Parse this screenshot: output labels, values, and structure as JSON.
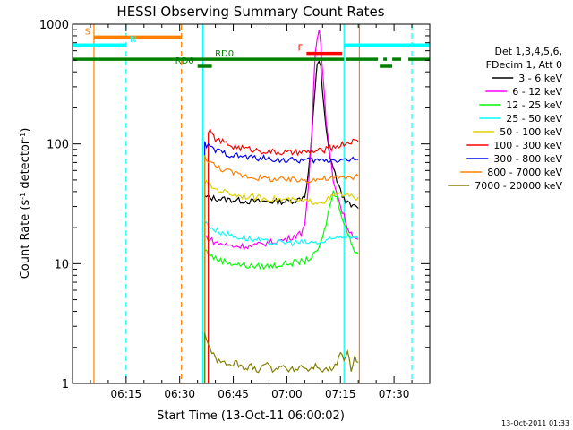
{
  "chart_data": {
    "type": "line",
    "title": "HESSI Observing Summary Count Rates",
    "xlabel": "Start Time (13-Oct-11 06:00:02)",
    "ylabel_main": "Count Rate (s",
    "ylabel_sup1": "-1",
    "ylabel_mid": " detector",
    "ylabel_sup2": "-1",
    "ylabel_end": ")",
    "xlim_minutes": [
      0,
      100
    ],
    "ylim": [
      1,
      1000
    ],
    "yscale": "log",
    "x_ticks": [
      {
        "minute": 15,
        "label": "06:15"
      },
      {
        "minute": 30,
        "label": "06:30"
      },
      {
        "minute": 45,
        "label": "06:45"
      },
      {
        "minute": 60,
        "label": "07:00"
      },
      {
        "minute": 75,
        "label": "07:15"
      },
      {
        "minute": 90,
        "label": "07:30"
      }
    ],
    "y_ticks": [
      {
        "value": 1,
        "label": "1"
      },
      {
        "value": 10,
        "label": "10"
      },
      {
        "value": 100,
        "label": "100"
      },
      {
        "value": 1000,
        "label": "1000"
      }
    ],
    "timestamp": "13-Oct-2011 01:33",
    "legend_header": [
      "Det 1,3,4,5,6,",
      "FDecim 1, Att 0"
    ],
    "series": [
      {
        "name": "3 - 6 keV",
        "color": "#000000",
        "x": [
          37,
          40,
          45,
          50,
          55,
          60,
          63,
          65,
          66,
          67,
          68,
          68.5,
          69,
          69.5,
          70,
          71,
          72,
          74,
          75,
          76,
          77,
          78,
          79,
          80
        ],
        "y": [
          36,
          35,
          34,
          33,
          33,
          33,
          34,
          37,
          55,
          120,
          300,
          470,
          500,
          430,
          260,
          130,
          80,
          50,
          40,
          35,
          32,
          30,
          30,
          29
        ]
      },
      {
        "name": "6 - 12 keV",
        "color": "#ff00ff",
        "x": [
          37,
          40,
          45,
          50,
          55,
          60,
          62,
          64,
          65,
          66,
          67,
          67.5,
          68,
          68.5,
          69,
          69.5,
          70,
          71,
          72,
          73,
          74,
          75,
          76,
          77,
          78,
          79,
          80
        ],
        "y": [
          17,
          15,
          14,
          14,
          15,
          16,
          17,
          18,
          22,
          40,
          120,
          300,
          600,
          800,
          900,
          700,
          400,
          160,
          80,
          50,
          40,
          30,
          25,
          20,
          18,
          17,
          16
        ]
      },
      {
        "name": "12 - 25 keV",
        "color": "#00ff00",
        "x": [
          37,
          40,
          45,
          50,
          55,
          60,
          65,
          68,
          70,
          72,
          73,
          74,
          75,
          76,
          77,
          78,
          79,
          80
        ],
        "y": [
          13,
          11,
          10,
          9.5,
          9.5,
          10,
          10.5,
          12,
          16,
          30,
          40,
          35,
          28,
          22,
          18,
          15,
          13,
          12
        ]
      },
      {
        "name": "25 - 50 keV",
        "color": "#00ffff",
        "x": [
          37,
          40,
          45,
          50,
          55,
          60,
          65,
          70,
          73,
          75,
          77,
          78,
          79,
          80
        ],
        "y": [
          22,
          19,
          17,
          16,
          15,
          15,
          15,
          15,
          16,
          17,
          17,
          17,
          17,
          16
        ]
      },
      {
        "name": "50 - 100 keV",
        "color": "#e0d000",
        "x": [
          37,
          40,
          45,
          50,
          55,
          60,
          65,
          70,
          72,
          74,
          75,
          76,
          77,
          78,
          79,
          80
        ],
        "y": [
          48,
          42,
          38,
          36,
          35,
          34,
          33,
          33,
          35,
          38,
          38,
          37,
          37,
          36,
          36,
          36
        ]
      },
      {
        "name": "100 - 300 keV",
        "color": "#ff0000",
        "x": [
          38,
          40,
          45,
          50,
          55,
          60,
          65,
          70,
          75,
          78,
          80
        ],
        "y": [
          130,
          110,
          95,
          90,
          86,
          84,
          85,
          88,
          98,
          105,
          105
        ]
      },
      {
        "name": "300 - 800 keV",
        "color": "#0000ff",
        "x": [
          37,
          40,
          45,
          50,
          55,
          60,
          65,
          70,
          75,
          78,
          80
        ],
        "y": [
          100,
          88,
          80,
          77,
          75,
          73,
          73,
          73,
          74,
          74,
          74
        ]
      },
      {
        "name": "800 - 7000 keV",
        "color": "#ff8000",
        "x": [
          37,
          40,
          45,
          50,
          55,
          60,
          65,
          70,
          75,
          78,
          80
        ],
        "y": [
          78,
          65,
          57,
          53,
          51,
          50,
          50,
          51,
          52,
          53,
          54
        ]
      },
      {
        "name": "7000 - 20000 keV",
        "color": "#808000",
        "x": [
          37,
          38,
          39,
          40,
          42,
          44,
          46,
          48,
          50,
          52,
          54,
          56,
          58,
          60,
          62,
          64,
          66,
          68,
          70,
          72,
          74,
          75,
          76,
          77,
          78,
          79,
          80
        ],
        "y": [
          2.6,
          2.2,
          1.8,
          1.6,
          1.5,
          1.4,
          1.5,
          1.3,
          1.4,
          1.3,
          1.5,
          1.3,
          1.4,
          1.3,
          1.3,
          1.4,
          1.3,
          1.4,
          1.3,
          1.3,
          1.4,
          1.9,
          1.5,
          1.8,
          1.3,
          1.7,
          1.5
        ]
      }
    ],
    "vertical_lines": [
      {
        "minute": 6,
        "color": "#ff8000",
        "style": "solid"
      },
      {
        "minute": 15,
        "color": "#00ffff",
        "style": "dashed"
      },
      {
        "minute": 30.5,
        "color": "#ff8000",
        "style": "dashed"
      },
      {
        "minute": 36.5,
        "color": "#00ffff",
        "style": "solid"
      },
      {
        "minute": 76,
        "color": "#00ffff",
        "style": "solid"
      },
      {
        "minute": 80.3,
        "color": "#ff8000",
        "style": "solid"
      },
      {
        "minute": 95,
        "color": "#00ffff",
        "style": "dashed"
      }
    ],
    "flag_bars": [
      {
        "label": "S",
        "color": "#ff8000",
        "x0": 6,
        "x1": 30.5,
        "y": 780,
        "label_side": "left"
      },
      {
        "label": "N",
        "color": "#00ffff",
        "x0": 0,
        "x1": 15,
        "y": 670,
        "label_side": "right"
      },
      {
        "label": "",
        "color": "#00ffff",
        "x0": 76,
        "x1": 100,
        "y": 670,
        "label_side": "none"
      },
      {
        "label": "F",
        "color": "#ff0000",
        "x0": 65.5,
        "x1": 75.5,
        "y": 570,
        "label_side": "left"
      },
      {
        "label": "RD0",
        "color": "#008000",
        "x0": 0,
        "x1": 76,
        "y": 510,
        "label_side": "mid"
      },
      {
        "label": "",
        "color": "#008000",
        "x0": 76.5,
        "x1": 85.5,
        "y": 510,
        "label_side": "none"
      },
      {
        "label": "",
        "color": "#008000",
        "x0": 87,
        "x1": 88,
        "y": 510,
        "label_side": "none"
      },
      {
        "label": "",
        "color": "#008000",
        "x0": 89.5,
        "x1": 92,
        "y": 510,
        "label_side": "none"
      },
      {
        "label": "",
        "color": "#008000",
        "x0": 94,
        "x1": 100,
        "y": 510,
        "label_side": "none"
      },
      {
        "label": "RD6",
        "color": "#008000",
        "x0": 35,
        "x1": 39,
        "y": 445,
        "label_side": "left"
      },
      {
        "label": "",
        "color": "#008000",
        "x0": 86,
        "x1": 89.5,
        "y": 445,
        "label_side": "none"
      }
    ]
  }
}
